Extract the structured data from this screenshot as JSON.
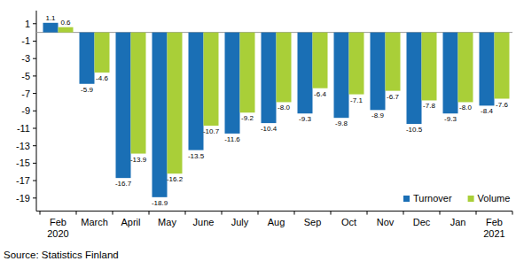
{
  "chart_data": {
    "type": "bar",
    "source": "Source: Statistics Finland",
    "categories": [
      "Feb\n2020",
      "March",
      "April",
      "May",
      "June",
      "July",
      "Aug",
      "Sep",
      "Oct",
      "Nov",
      "Dec",
      "Jan",
      "Feb\n2021"
    ],
    "series": [
      {
        "name": "Turnover",
        "color": "#1a6fb5",
        "values": [
          1.1,
          -5.9,
          -16.7,
          -18.9,
          -13.5,
          -11.6,
          -10.4,
          -9.3,
          -9.8,
          -8.9,
          -10.5,
          -9.3,
          -8.4
        ],
        "value_labels": [
          "1.1",
          "-5.9",
          "-16.7",
          "-18.9",
          "-13.5",
          "-11.6",
          "-10.4",
          "-9.3",
          "-9.8",
          "-8.9",
          "-10.5",
          "-9.3",
          "-8.4"
        ]
      },
      {
        "name": "Volume",
        "color": "#a9cf38",
        "values": [
          0.6,
          -4.6,
          -13.9,
          -16.2,
          -10.7,
          -9.2,
          -8.0,
          -6.4,
          -7.1,
          -6.7,
          -7.8,
          -8.0,
          -7.6
        ],
        "value_labels": [
          "0.6",
          "-4.6",
          "-13.9",
          "-16.2",
          "-10.7",
          "-9.2",
          "-8.0",
          "-6.4",
          "-7.1",
          "-6.7",
          "-7.8",
          "-8.0",
          "-7.6"
        ]
      }
    ],
    "ylim": [
      -20.5,
      2.5
    ],
    "yticks": [
      1,
      -1,
      -3,
      -5,
      -7,
      -9,
      -11,
      -13,
      -15,
      -17,
      -19
    ],
    "grid": false,
    "legend": "lower right",
    "data_labels": true
  }
}
